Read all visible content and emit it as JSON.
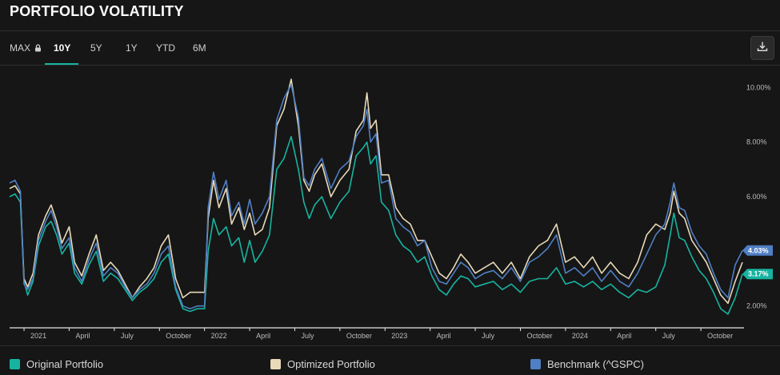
{
  "header": {
    "title": "PORTFOLIO VOLATILITY"
  },
  "tabs": [
    {
      "label": "MAX",
      "locked": true,
      "active": false
    },
    {
      "label": "10Y",
      "active": true
    },
    {
      "label": "5Y",
      "active": false
    },
    {
      "label": "1Y",
      "active": false
    },
    {
      "label": "YTD",
      "active": false
    },
    {
      "label": "6M",
      "active": false
    }
  ],
  "toolbar": {
    "download_icon": "download-icon"
  },
  "colors": {
    "original": "#16b4a0",
    "optimized": "#e8d9b8",
    "benchmark": "#4f7fc4",
    "accent": "#16b4a0"
  },
  "end_labels": {
    "benchmark": "4.03%",
    "original": "3.17%"
  },
  "legend": [
    {
      "label": "Original Portfolio",
      "color": "#16b4a0"
    },
    {
      "label": "Optimized Portfolio",
      "color": "#e8d9b8"
    },
    {
      "label": "Benchmark (^GSPC)",
      "color": "#4f7fc4"
    }
  ],
  "chart_data": {
    "type": "line",
    "title": "",
    "xlabel": "",
    "ylabel": "",
    "ylim": [
      1.2,
      10.8
    ],
    "xlim": [
      2020.92,
      2024.98
    ],
    "y_ticks": [
      {
        "value": 10,
        "label": "10.00%"
      },
      {
        "value": 8,
        "label": "8.00%"
      },
      {
        "value": 6,
        "label": "6.00%"
      },
      {
        "value": 2,
        "label": "2.00%"
      }
    ],
    "x_ticks": [
      {
        "value": 2021.0,
        "label": "2021"
      },
      {
        "value": 2021.25,
        "label": "April"
      },
      {
        "value": 2021.5,
        "label": "July"
      },
      {
        "value": 2021.75,
        "label": "October"
      },
      {
        "value": 2022.0,
        "label": "2022"
      },
      {
        "value": 2022.25,
        "label": "April"
      },
      {
        "value": 2022.5,
        "label": "July"
      },
      {
        "value": 2022.75,
        "label": "October"
      },
      {
        "value": 2023.0,
        "label": "2023"
      },
      {
        "value": 2023.25,
        "label": "April"
      },
      {
        "value": 2023.5,
        "label": "July"
      },
      {
        "value": 2023.75,
        "label": "October"
      },
      {
        "value": 2024.0,
        "label": "2024"
      },
      {
        "value": 2024.25,
        "label": "April"
      },
      {
        "value": 2024.5,
        "label": "July"
      },
      {
        "value": 2024.75,
        "label": "October"
      }
    ],
    "grid": false,
    "legend_position": "bottom",
    "series": [
      {
        "name": "Original Portfolio",
        "color": "#16b4a0",
        "x": [
          2020.92,
          2020.95,
          2020.98,
          2021.0,
          2021.02,
          2021.05,
          2021.08,
          2021.12,
          2021.15,
          2021.18,
          2021.21,
          2021.25,
          2021.28,
          2021.32,
          2021.36,
          2021.4,
          2021.44,
          2021.48,
          2021.52,
          2021.56,
          2021.6,
          2021.64,
          2021.68,
          2021.72,
          2021.76,
          2021.8,
          2021.84,
          2021.88,
          2021.92,
          2021.96,
          2022.0,
          2022.02,
          2022.05,
          2022.08,
          2022.12,
          2022.15,
          2022.19,
          2022.22,
          2022.25,
          2022.28,
          2022.32,
          2022.36,
          2022.4,
          2022.44,
          2022.48,
          2022.52,
          2022.55,
          2022.58,
          2022.61,
          2022.65,
          2022.7,
          2022.75,
          2022.8,
          2022.84,
          2022.88,
          2022.9,
          2022.92,
          2022.95,
          2022.98,
          2023.02,
          2023.06,
          2023.1,
          2023.14,
          2023.18,
          2023.22,
          2023.26,
          2023.3,
          2023.34,
          2023.38,
          2023.42,
          2023.46,
          2023.5,
          2023.55,
          2023.6,
          2023.65,
          2023.7,
          2023.75,
          2023.8,
          2023.85,
          2023.9,
          2023.95,
          2024.0,
          2024.05,
          2024.1,
          2024.15,
          2024.2,
          2024.25,
          2024.3,
          2024.35,
          2024.4,
          2024.45,
          2024.5,
          2024.55,
          2024.58,
          2024.6,
          2024.63,
          2024.66,
          2024.7,
          2024.74,
          2024.78,
          2024.82,
          2024.86,
          2024.9,
          2024.94,
          2024.98
        ],
        "y": [
          6.0,
          6.1,
          5.8,
          2.9,
          2.4,
          2.9,
          4.2,
          4.9,
          5.1,
          4.6,
          3.9,
          4.3,
          3.2,
          2.8,
          3.5,
          4.0,
          2.9,
          3.2,
          3.0,
          2.6,
          2.2,
          2.5,
          2.7,
          3.0,
          3.6,
          3.9,
          2.6,
          1.9,
          1.8,
          1.9,
          1.9,
          4.0,
          5.2,
          4.6,
          4.9,
          4.2,
          4.5,
          3.6,
          4.4,
          3.6,
          4.0,
          4.6,
          7.0,
          7.4,
          8.2,
          7.0,
          5.8,
          5.2,
          5.7,
          6.0,
          5.2,
          5.8,
          6.2,
          7.5,
          7.8,
          8.0,
          7.2,
          7.5,
          5.8,
          5.5,
          4.6,
          4.2,
          4.0,
          3.6,
          3.8,
          3.1,
          2.6,
          2.4,
          2.8,
          3.1,
          3.0,
          2.7,
          2.8,
          2.9,
          2.6,
          2.8,
          2.5,
          2.9,
          3.0,
          3.0,
          3.4,
          2.8,
          2.9,
          2.7,
          2.9,
          2.6,
          2.8,
          2.5,
          2.3,
          2.6,
          2.5,
          2.7,
          3.5,
          4.6,
          5.4,
          4.5,
          4.4,
          3.8,
          3.3,
          3.0,
          2.5,
          1.9,
          1.7,
          2.3,
          3.17
        ]
      },
      {
        "name": "Optimized Portfolio",
        "color": "#e8d9b8",
        "x": [
          2020.92,
          2020.95,
          2020.98,
          2021.0,
          2021.02,
          2021.05,
          2021.08,
          2021.12,
          2021.15,
          2021.18,
          2021.21,
          2021.25,
          2021.28,
          2021.32,
          2021.36,
          2021.4,
          2021.44,
          2021.48,
          2021.52,
          2021.56,
          2021.6,
          2021.64,
          2021.68,
          2021.72,
          2021.76,
          2021.8,
          2021.84,
          2021.88,
          2021.92,
          2021.96,
          2022.0,
          2022.02,
          2022.05,
          2022.08,
          2022.12,
          2022.15,
          2022.19,
          2022.22,
          2022.25,
          2022.28,
          2022.32,
          2022.36,
          2022.4,
          2022.44,
          2022.48,
          2022.52,
          2022.55,
          2022.58,
          2022.61,
          2022.65,
          2022.7,
          2022.75,
          2022.8,
          2022.84,
          2022.88,
          2022.9,
          2022.92,
          2022.95,
          2022.98,
          2023.02,
          2023.06,
          2023.1,
          2023.14,
          2023.18,
          2023.22,
          2023.26,
          2023.3,
          2023.34,
          2023.38,
          2023.42,
          2023.46,
          2023.5,
          2023.55,
          2023.6,
          2023.65,
          2023.7,
          2023.75,
          2023.8,
          2023.85,
          2023.9,
          2023.95,
          2024.0,
          2024.05,
          2024.1,
          2024.15,
          2024.2,
          2024.25,
          2024.3,
          2024.35,
          2024.4,
          2024.45,
          2024.5,
          2024.55,
          2024.58,
          2024.6,
          2024.63,
          2024.66,
          2024.7,
          2024.74,
          2024.78,
          2024.82,
          2024.86,
          2024.9,
          2024.94,
          2024.98
        ],
        "y": [
          6.3,
          6.4,
          6.1,
          3.0,
          2.7,
          3.2,
          4.6,
          5.3,
          5.7,
          5.1,
          4.3,
          4.9,
          3.6,
          3.1,
          3.9,
          4.6,
          3.3,
          3.6,
          3.3,
          2.8,
          2.3,
          2.7,
          3.0,
          3.4,
          4.2,
          4.6,
          3.0,
          2.3,
          2.5,
          2.5,
          2.5,
          5.2,
          6.6,
          5.6,
          6.3,
          5.0,
          5.6,
          4.8,
          5.4,
          4.6,
          4.8,
          5.6,
          8.6,
          9.2,
          10.3,
          8.6,
          6.6,
          6.2,
          6.8,
          7.2,
          6.0,
          6.6,
          7.0,
          8.4,
          8.8,
          9.8,
          8.5,
          8.8,
          6.8,
          6.8,
          5.6,
          5.2,
          5.0,
          4.4,
          4.4,
          3.8,
          3.2,
          3.0,
          3.4,
          3.9,
          3.6,
          3.2,
          3.4,
          3.6,
          3.2,
          3.6,
          3.0,
          3.8,
          4.2,
          4.4,
          5.0,
          3.6,
          3.8,
          3.4,
          3.8,
          3.2,
          3.6,
          3.2,
          3.0,
          3.6,
          4.6,
          5.0,
          4.8,
          5.4,
          6.2,
          5.4,
          5.2,
          4.4,
          4.0,
          3.6,
          3.0,
          2.4,
          2.1,
          2.9,
          3.6
        ]
      },
      {
        "name": "Benchmark (^GSPC)",
        "color": "#4f7fc4",
        "x": [
          2020.92,
          2020.95,
          2020.98,
          2021.0,
          2021.02,
          2021.05,
          2021.08,
          2021.12,
          2021.15,
          2021.18,
          2021.21,
          2021.25,
          2021.28,
          2021.32,
          2021.36,
          2021.4,
          2021.44,
          2021.48,
          2021.52,
          2021.56,
          2021.6,
          2021.64,
          2021.68,
          2021.72,
          2021.76,
          2021.8,
          2021.84,
          2021.88,
          2021.92,
          2021.96,
          2022.0,
          2022.02,
          2022.05,
          2022.08,
          2022.12,
          2022.15,
          2022.19,
          2022.22,
          2022.25,
          2022.28,
          2022.32,
          2022.36,
          2022.4,
          2022.44,
          2022.48,
          2022.52,
          2022.55,
          2022.58,
          2022.61,
          2022.65,
          2022.7,
          2022.75,
          2022.8,
          2022.84,
          2022.88,
          2022.9,
          2022.92,
          2022.95,
          2022.98,
          2023.02,
          2023.06,
          2023.1,
          2023.14,
          2023.18,
          2023.22,
          2023.26,
          2023.3,
          2023.34,
          2023.38,
          2023.42,
          2023.46,
          2023.5,
          2023.55,
          2023.6,
          2023.65,
          2023.7,
          2023.75,
          2023.8,
          2023.85,
          2023.9,
          2023.95,
          2024.0,
          2024.05,
          2024.1,
          2024.15,
          2024.2,
          2024.25,
          2024.3,
          2024.35,
          2024.4,
          2024.45,
          2024.5,
          2024.55,
          2024.58,
          2024.6,
          2024.63,
          2024.66,
          2024.7,
          2024.74,
          2024.78,
          2024.82,
          2024.86,
          2024.9,
          2024.94,
          2024.98
        ],
        "y": [
          6.5,
          6.6,
          6.2,
          2.8,
          2.6,
          3.0,
          4.4,
          5.1,
          5.5,
          4.9,
          4.1,
          4.5,
          3.4,
          2.9,
          3.7,
          4.3,
          3.1,
          3.4,
          3.2,
          2.7,
          2.3,
          2.6,
          2.8,
          3.2,
          3.9,
          4.2,
          2.7,
          2.0,
          1.9,
          2.0,
          2.0,
          5.6,
          6.9,
          5.9,
          6.6,
          5.3,
          5.8,
          5.0,
          5.9,
          5.0,
          5.4,
          6.0,
          8.8,
          9.6,
          10.1,
          8.9,
          6.7,
          6.4,
          7.0,
          7.4,
          6.3,
          7.0,
          7.3,
          8.2,
          8.6,
          9.2,
          8.0,
          8.3,
          6.5,
          6.6,
          5.2,
          4.9,
          4.7,
          4.2,
          4.4,
          3.4,
          2.9,
          2.8,
          3.2,
          3.6,
          3.4,
          3.0,
          3.2,
          3.3,
          3.0,
          3.4,
          2.9,
          3.6,
          3.8,
          4.1,
          4.6,
          3.2,
          3.4,
          3.1,
          3.4,
          2.9,
          3.3,
          2.9,
          2.7,
          3.2,
          3.9,
          4.6,
          5.0,
          5.8,
          6.5,
          5.6,
          5.5,
          4.7,
          4.2,
          3.9,
          3.2,
          2.6,
          2.3,
          3.5,
          4.03
        ]
      }
    ]
  }
}
